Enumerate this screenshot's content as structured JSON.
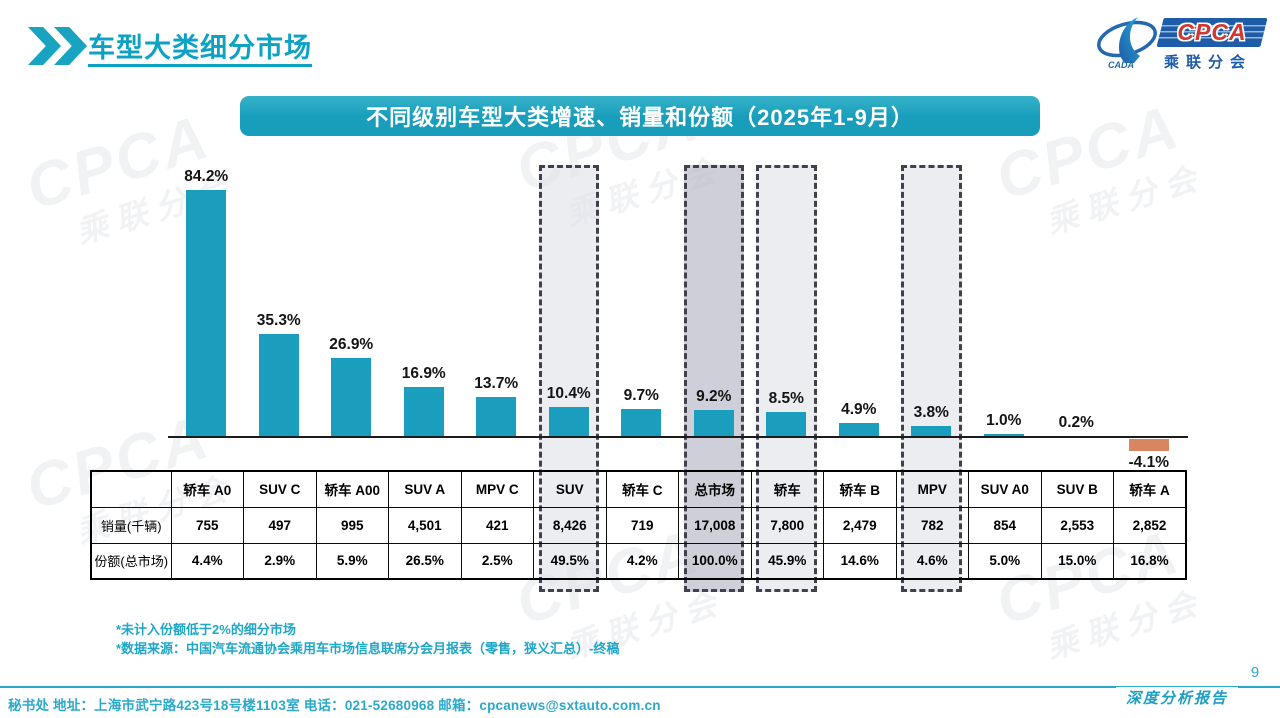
{
  "page": {
    "title": "车型大类细分市场",
    "page_number": "9",
    "report_label": "深度分析报告",
    "footer": "秘书处  地址：上海市武宁路423号18号楼1103室 电话：021-52680968  邮箱：cpcanews@sxtauto.com.cn"
  },
  "logo": {
    "cpca": "CPCA",
    "cada": "CADA",
    "subtitle": "乘联分会"
  },
  "banner": {
    "title": "不同级别车型大类增速、销量和份额（2025年1-9月）"
  },
  "notes": [
    "*未计入份额低于2%的细分市场",
    "*数据来源：中国汽车流通协会乘用车市场信息联席分会月报表（零售，狭义汇总）-终稿"
  ],
  "colors": {
    "bar": "#1B9DBE",
    "bar_negative": "#D9855F",
    "accent_teal": "#189DBB",
    "highlight_fill": "#EDEDF0",
    "highlight_emphasis_fill": "#D4D5DF"
  },
  "table": {
    "row_labels": [
      "销量(千辆)",
      "份额(总市场)"
    ]
  },
  "chart_data": {
    "type": "bar",
    "title": "不同级别车型大类增速、销量和份额（2025年1-9月）",
    "categories": [
      "轿车 A0",
      "SUV C",
      "轿车 A00",
      "SUV A",
      "MPV C",
      "SUV",
      "轿车 C",
      "总市场",
      "轿车",
      "轿车 B",
      "MPV",
      "SUV A0",
      "SUV B",
      "轿车 A"
    ],
    "series": [
      {
        "name": "增速(%)",
        "values": [
          84.2,
          35.3,
          26.9,
          16.9,
          13.7,
          10.4,
          9.7,
          9.2,
          8.5,
          4.9,
          3.8,
          1.0,
          0.2,
          -4.1
        ]
      },
      {
        "name": "销量(千辆)",
        "values": [
          "755",
          "497",
          "995",
          "4,501",
          "421",
          "8,426",
          "719",
          "17,008",
          "7,800",
          "2,479",
          "782",
          "854",
          "2,553",
          "2,852"
        ]
      },
      {
        "name": "份额(总市场)",
        "values": [
          "4.4%",
          "2.9%",
          "5.9%",
          "26.5%",
          "2.5%",
          "49.5%",
          "4.2%",
          "100.0%",
          "45.9%",
          "14.6%",
          "4.6%",
          "5.0%",
          "15.0%",
          "16.8%"
        ]
      }
    ],
    "highlighted": [
      "SUV",
      "总市场",
      "轿车",
      "MPV"
    ],
    "highlight_emphasis": "总市场",
    "ylim": [
      -10,
      95
    ],
    "grid": false,
    "legend": false,
    "xlabel": "",
    "ylabel": ""
  }
}
